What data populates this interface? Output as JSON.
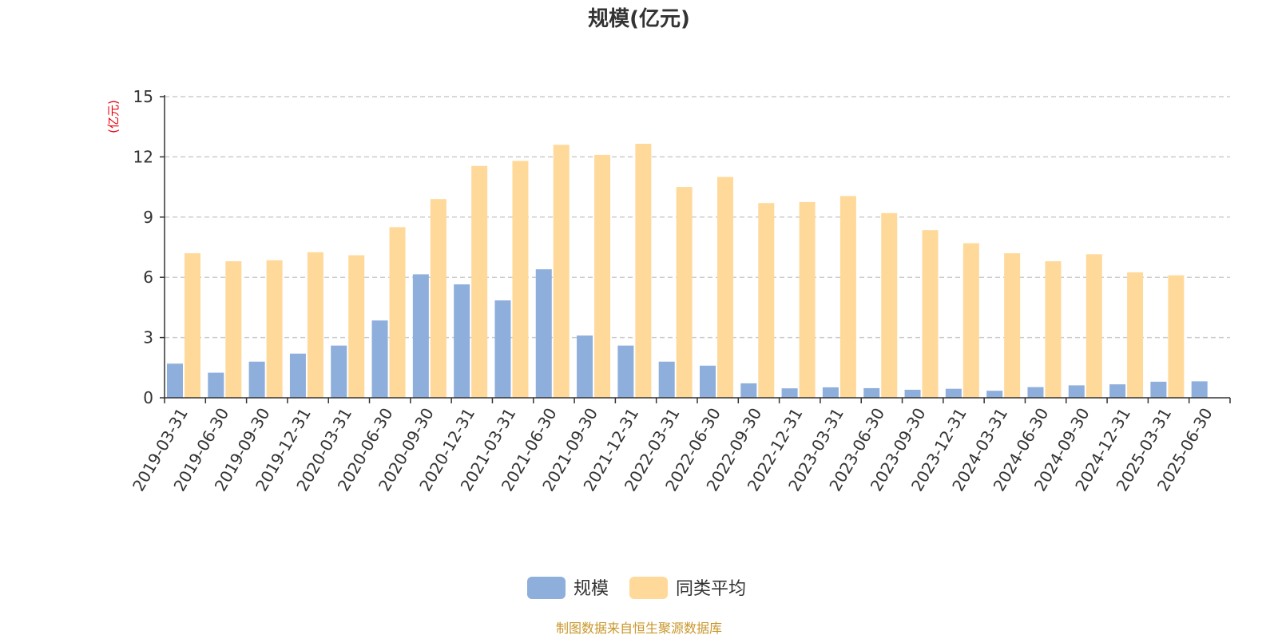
{
  "chart_data": {
    "type": "bar",
    "title": "规模(亿元)",
    "ylabel": "(亿元)",
    "ylim": [
      0,
      15
    ],
    "yticks": [
      0,
      3,
      6,
      9,
      12,
      15
    ],
    "grid": true,
    "legend_position": "bottom",
    "categories": [
      "2019-03-31",
      "2019-06-30",
      "2019-09-30",
      "2019-12-31",
      "2020-03-31",
      "2020-06-30",
      "2020-09-30",
      "2020-12-31",
      "2021-03-31",
      "2021-06-30",
      "2021-09-30",
      "2021-12-31",
      "2022-03-31",
      "2022-06-30",
      "2022-09-30",
      "2022-12-31",
      "2023-03-31",
      "2023-06-30",
      "2023-09-30",
      "2023-12-31",
      "2024-03-31",
      "2024-06-30",
      "2024-09-30",
      "2024-12-31",
      "2025-03-31",
      "2025-06-30"
    ],
    "series": [
      {
        "name": "规模",
        "color": "#8eaedc",
        "values": [
          1.7,
          1.25,
          1.8,
          2.2,
          2.6,
          3.85,
          6.15,
          5.65,
          4.85,
          6.4,
          3.1,
          2.6,
          1.8,
          1.6,
          0.72,
          0.47,
          0.52,
          0.48,
          0.4,
          0.45,
          0.35,
          0.53,
          0.62,
          0.67,
          0.8,
          0.82
        ]
      },
      {
        "name": "同类平均",
        "color": "#ffd99a",
        "values": [
          7.2,
          6.8,
          6.85,
          7.25,
          7.1,
          8.5,
          9.9,
          11.55,
          11.8,
          12.6,
          12.1,
          12.65,
          10.5,
          11.0,
          9.7,
          9.75,
          10.05,
          9.2,
          8.35,
          7.7,
          7.2,
          6.8,
          7.15,
          6.25,
          6.1,
          null
        ]
      }
    ]
  },
  "source_text": "制图数据来自恒生聚源数据库"
}
